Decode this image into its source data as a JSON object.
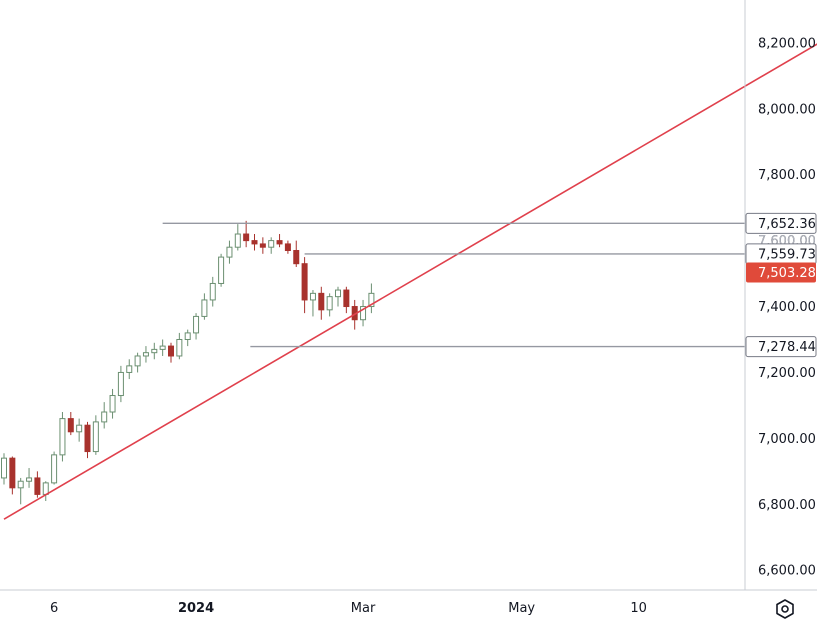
{
  "chart_data": {
    "type": "candlestick",
    "title": "",
    "xlabel": "",
    "ylabel": "",
    "ylim": [
      6540,
      8330
    ],
    "y_ticks": [
      "8,200.00",
      "8,000.00",
      "7,800.00",
      "7,600.00",
      "7,400.00",
      "7,200.00",
      "7,000.00",
      "6,800.00",
      "6,600.00"
    ],
    "y_tick_values": [
      8200,
      8000,
      7800,
      7600,
      7400,
      7200,
      7000,
      6800,
      6600
    ],
    "x_ticks": [
      {
        "label": "6",
        "bold": false,
        "bar": 6
      },
      {
        "label": "2024",
        "bold": true,
        "bar": 23
      },
      {
        "label": "Mar",
        "bold": false,
        "bar": 43
      },
      {
        "label": "May",
        "bold": false,
        "bar": 62
      },
      {
        "label": "10",
        "bold": false,
        "bar": 76
      }
    ],
    "up_color": "#6b8f71",
    "down_color": "#a8322d",
    "candles": [
      [
        0,
        6880,
        6955,
        6860,
        6940
      ],
      [
        1,
        6940,
        6945,
        6830,
        6850
      ],
      [
        2,
        6850,
        6880,
        6800,
        6870
      ],
      [
        3,
        6870,
        6910,
        6850,
        6880
      ],
      [
        4,
        6880,
        6900,
        6820,
        6830
      ],
      [
        5,
        6830,
        6870,
        6810,
        6865
      ],
      [
        6,
        6865,
        6960,
        6860,
        6950
      ],
      [
        7,
        6950,
        7080,
        6930,
        7060
      ],
      [
        8,
        7060,
        7080,
        7010,
        7020
      ],
      [
        9,
        7020,
        7060,
        6990,
        7040
      ],
      [
        10,
        7040,
        7050,
        6940,
        6960
      ],
      [
        11,
        6960,
        7070,
        6950,
        7050
      ],
      [
        12,
        7050,
        7110,
        7030,
        7080
      ],
      [
        13,
        7080,
        7150,
        7060,
        7130
      ],
      [
        14,
        7130,
        7220,
        7110,
        7200
      ],
      [
        15,
        7200,
        7240,
        7180,
        7220
      ],
      [
        16,
        7220,
        7260,
        7200,
        7250
      ],
      [
        17,
        7250,
        7280,
        7230,
        7260
      ],
      [
        18,
        7260,
        7290,
        7240,
        7270
      ],
      [
        19,
        7270,
        7300,
        7250,
        7280
      ],
      [
        20,
        7280,
        7290,
        7230,
        7250
      ],
      [
        21,
        7250,
        7320,
        7240,
        7300
      ],
      [
        22,
        7300,
        7330,
        7280,
        7320
      ],
      [
        23,
        7320,
        7380,
        7300,
        7370
      ],
      [
        24,
        7370,
        7440,
        7360,
        7420
      ],
      [
        25,
        7420,
        7490,
        7400,
        7470
      ],
      [
        26,
        7470,
        7560,
        7460,
        7550
      ],
      [
        27,
        7550,
        7600,
        7530,
        7580
      ],
      [
        28,
        7580,
        7650,
        7570,
        7620
      ],
      [
        29,
        7620,
        7660,
        7580,
        7600
      ],
      [
        30,
        7600,
        7620,
        7570,
        7590
      ],
      [
        31,
        7590,
        7610,
        7560,
        7580
      ],
      [
        32,
        7580,
        7610,
        7560,
        7600
      ],
      [
        33,
        7600,
        7620,
        7580,
        7590
      ],
      [
        34,
        7590,
        7600,
        7560,
        7570
      ],
      [
        35,
        7570,
        7600,
        7520,
        7530
      ],
      [
        36,
        7530,
        7550,
        7380,
        7420
      ],
      [
        37,
        7420,
        7450,
        7370,
        7440
      ],
      [
        38,
        7440,
        7460,
        7360,
        7390
      ],
      [
        39,
        7390,
        7440,
        7370,
        7430
      ],
      [
        40,
        7430,
        7460,
        7400,
        7450
      ],
      [
        41,
        7450,
        7460,
        7380,
        7400
      ],
      [
        42,
        7400,
        7420,
        7330,
        7360
      ],
      [
        43,
        7360,
        7420,
        7340,
        7400
      ],
      [
        44,
        7400,
        7470,
        7380,
        7440
      ]
    ],
    "lines": [
      {
        "name": "",
        "color": "#e0404c",
        "x1": 0,
        "y1": 6755,
        "x2": 100,
        "y2": 8235
      },
      {
        "name": "",
        "color": "#9598a1",
        "y": 7652.36
      },
      {
        "name": "",
        "color": "#9598a1",
        "y": 7559.73
      },
      {
        "name": "",
        "color": "#9598a1",
        "y": 7278.44
      }
    ],
    "price_tags": [
      {
        "text": "7,652.36",
        "value": 7652.36,
        "bg": "#ffffff",
        "fg": "#131722",
        "border": "#787b86"
      },
      {
        "text": "7,600.00",
        "value": 7600,
        "bg": "#ffffff",
        "fg": "#b2b5be",
        "border": "none",
        "partial": true
      },
      {
        "text": "7,559.73",
        "value": 7559.73,
        "bg": "#ffffff",
        "fg": "#131722",
        "border": "#787b86"
      },
      {
        "text": "7,503.28",
        "value": 7503.28,
        "bg": "#e04a3a",
        "fg": "#ffffff",
        "border": "none"
      },
      {
        "text": "7,278.44",
        "value": 7278.44,
        "bg": "#ffffff",
        "fg": "#131722",
        "border": "#787b86"
      }
    ]
  },
  "toolbar": {
    "settings_icon": "hexagon-settings-icon"
  }
}
